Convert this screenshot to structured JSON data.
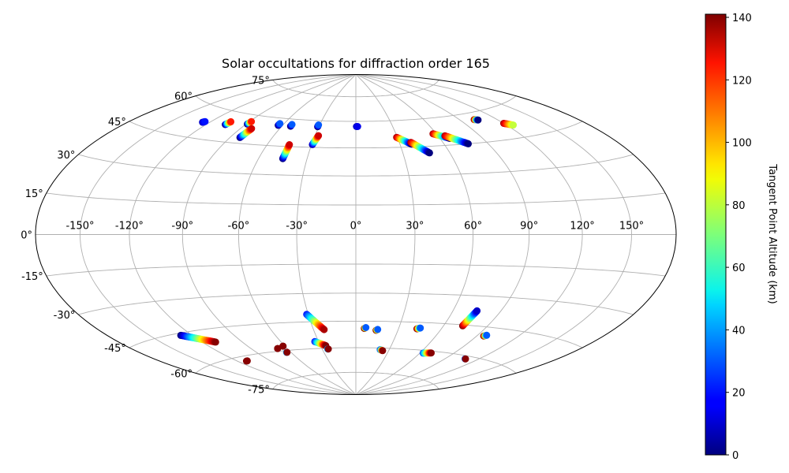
{
  "chart_data": {
    "type": "scatter",
    "projection": "aitoff-hammer (elliptical)",
    "title": "Solar occultations for diffraction order 165",
    "lon_tick_labels": [
      "-150°",
      "-120°",
      "-90°",
      "-60°",
      "-30°",
      "0°",
      "30°",
      "60°",
      "90°",
      "120°",
      "150°"
    ],
    "lat_tick_labels": [
      "75°",
      "60°",
      "45°",
      "30°",
      "15°",
      "0°",
      "-15°",
      "-30°",
      "-45°",
      "-60°",
      "-75°"
    ],
    "lon_range": [
      -180,
      180
    ],
    "lat_range": [
      -90,
      90
    ],
    "grid": true,
    "colorbar": {
      "label": "Tangent Point Altitude (km)",
      "colormap": "jet",
      "range": [
        0,
        141
      ],
      "tick_labels": [
        "0",
        "20",
        "40",
        "60",
        "80",
        "100",
        "120",
        "140"
      ],
      "ticks": [
        0,
        20,
        40,
        60,
        80,
        100,
        120,
        140
      ]
    },
    "tracks": [
      {
        "lon0": -125.5,
        "lat0": 52.5,
        "lon1": -124.5,
        "lat1": 53.0,
        "alt0": 10,
        "alt1": 20
      },
      {
        "lon0": -105.5,
        "lat0": 53.3,
        "lon1": -104.5,
        "lat1": 55.0,
        "alt0": 0,
        "alt1": 120
      },
      {
        "lon0": -89.0,
        "lat0": 55.0,
        "lon1": -88.5,
        "lat1": 56.5,
        "alt0": 0,
        "alt1": 120
      },
      {
        "lon0": -83.0,
        "lat0": 48.0,
        "lon1": -81.5,
        "lat1": 53.0,
        "alt0": 0,
        "alt1": 130
      },
      {
        "lon0": -63.5,
        "lat0": 56.0,
        "lon1": -63.5,
        "lat1": 57.0,
        "alt0": 0,
        "alt1": 30
      },
      {
        "lon0": -53.0,
        "lat0": 56.0,
        "lon1": -53.0,
        "lat1": 57.0,
        "alt0": 0,
        "alt1": 30
      },
      {
        "lon0": -45.0,
        "lat0": 38.5,
        "lon1": -45.0,
        "lat1": 46.0,
        "alt0": 0,
        "alt1": 130
      },
      {
        "lon0": -31.0,
        "lat0": 56.5,
        "lon1": -31.0,
        "lat1": 57.5,
        "alt0": 0,
        "alt1": 30
      },
      {
        "lon0": -29.5,
        "lat0": 46.5,
        "lon1": -27.5,
        "lat1": 51.5,
        "alt0": 5,
        "alt1": 130
      },
      {
        "lon0": 0.5,
        "lat0": 57.0,
        "lon1": 1.5,
        "lat1": 57.0,
        "alt0": 10,
        "alt1": 15
      },
      {
        "lon0": 29.5,
        "lat0": 50.5,
        "lon1": 38.0,
        "lat1": 46.5,
        "alt0": 135,
        "alt1": 0
      },
      {
        "lon0": 38.0,
        "lat0": 47.5,
        "lon1": 47.0,
        "lat1": 41.5,
        "alt0": 135,
        "alt1": 0
      },
      {
        "lon0": 57.5,
        "lat0": 51.5,
        "lon1": 67.0,
        "lat1": 48.5,
        "alt0": 135,
        "alt1": 0
      },
      {
        "lon0": 65.0,
        "lat0": 50.0,
        "lon1": 76.5,
        "lat1": 45.0,
        "alt0": 135,
        "alt1": 0
      },
      {
        "lon0": 102.0,
        "lat0": 56.5,
        "lon1": 104.5,
        "lat1": 56.0,
        "alt0": 135,
        "alt1": 0
      },
      {
        "lon0": 120.0,
        "lat0": 52.5,
        "lon1": 125.0,
        "lat1": 51.0,
        "alt0": 135,
        "alt1": 80
      },
      {
        "lon0": -128.0,
        "lat0": -46.0,
        "lon1": -110.0,
        "lat1": -51.5,
        "alt0": 0,
        "alt1": 140
      },
      {
        "lon0": -112.0,
        "lat0": -62.5,
        "lon1": -111.0,
        "lat1": -62.5,
        "alt0": 140,
        "alt1": 140
      },
      {
        "lon0": -68.0,
        "lat0": -58.5,
        "lon1": -68.0,
        "lat1": -58.5,
        "alt0": 140,
        "alt1": 140
      },
      {
        "lon0": -61.5,
        "lat0": -57.5,
        "lon1": -61.5,
        "lat1": -57.5,
        "alt0": 140,
        "alt1": 140
      },
      {
        "lon0": -64.0,
        "lat0": -61.0,
        "lon1": -63.5,
        "lat1": -61.0,
        "alt0": 40,
        "alt1": 140
      },
      {
        "lon0": -33.0,
        "lat0": -56.0,
        "lon1": -25.5,
        "lat1": -58.5,
        "alt0": 20,
        "alt1": 140
      },
      {
        "lon0": -31.0,
        "lat0": -41.0,
        "lon1": -22.5,
        "lat1": -49.5,
        "alt0": 20,
        "alt1": 135
      },
      {
        "lon0": -25.0,
        "lat0": -60.5,
        "lon1": -24.5,
        "lat1": -60.5,
        "alt0": 40,
        "alt1": 140
      },
      {
        "lon0": 6.0,
        "lat0": -49.0,
        "lon1": 7.0,
        "lat1": -48.5,
        "alt0": 140,
        "alt1": 30
      },
      {
        "lon0": 14.5,
        "lat0": -50.0,
        "lon1": 15.5,
        "lat1": -49.5,
        "alt0": 140,
        "alt1": 30
      },
      {
        "lon0": 22.0,
        "lat0": -61.0,
        "lon1": 24.5,
        "lat1": -61.5,
        "alt0": 30,
        "alt1": 140
      },
      {
        "lon0": 43.0,
        "lat0": -48.5,
        "lon1": 45.0,
        "lat1": -48.0,
        "alt0": 140,
        "alt1": 30
      },
      {
        "lon0": 73.0,
        "lat0": -45.5,
        "lon1": 75.0,
        "lat1": -37.5,
        "alt0": 140,
        "alt1": 10
      },
      {
        "lon0": 63.0,
        "lat0": -61.5,
        "lon1": 70.0,
        "lat1": -61.0,
        "alt0": 30,
        "alt1": 140
      },
      {
        "lon0": 95.0,
        "lat0": -49.5,
        "lon1": 96.5,
        "lat1": -49.0,
        "alt0": 140,
        "alt1": 30
      },
      {
        "lon0": 108.0,
        "lat0": -61.5,
        "lon1": 108.5,
        "lat1": -61.5,
        "alt0": 30,
        "alt1": 140
      }
    ]
  }
}
